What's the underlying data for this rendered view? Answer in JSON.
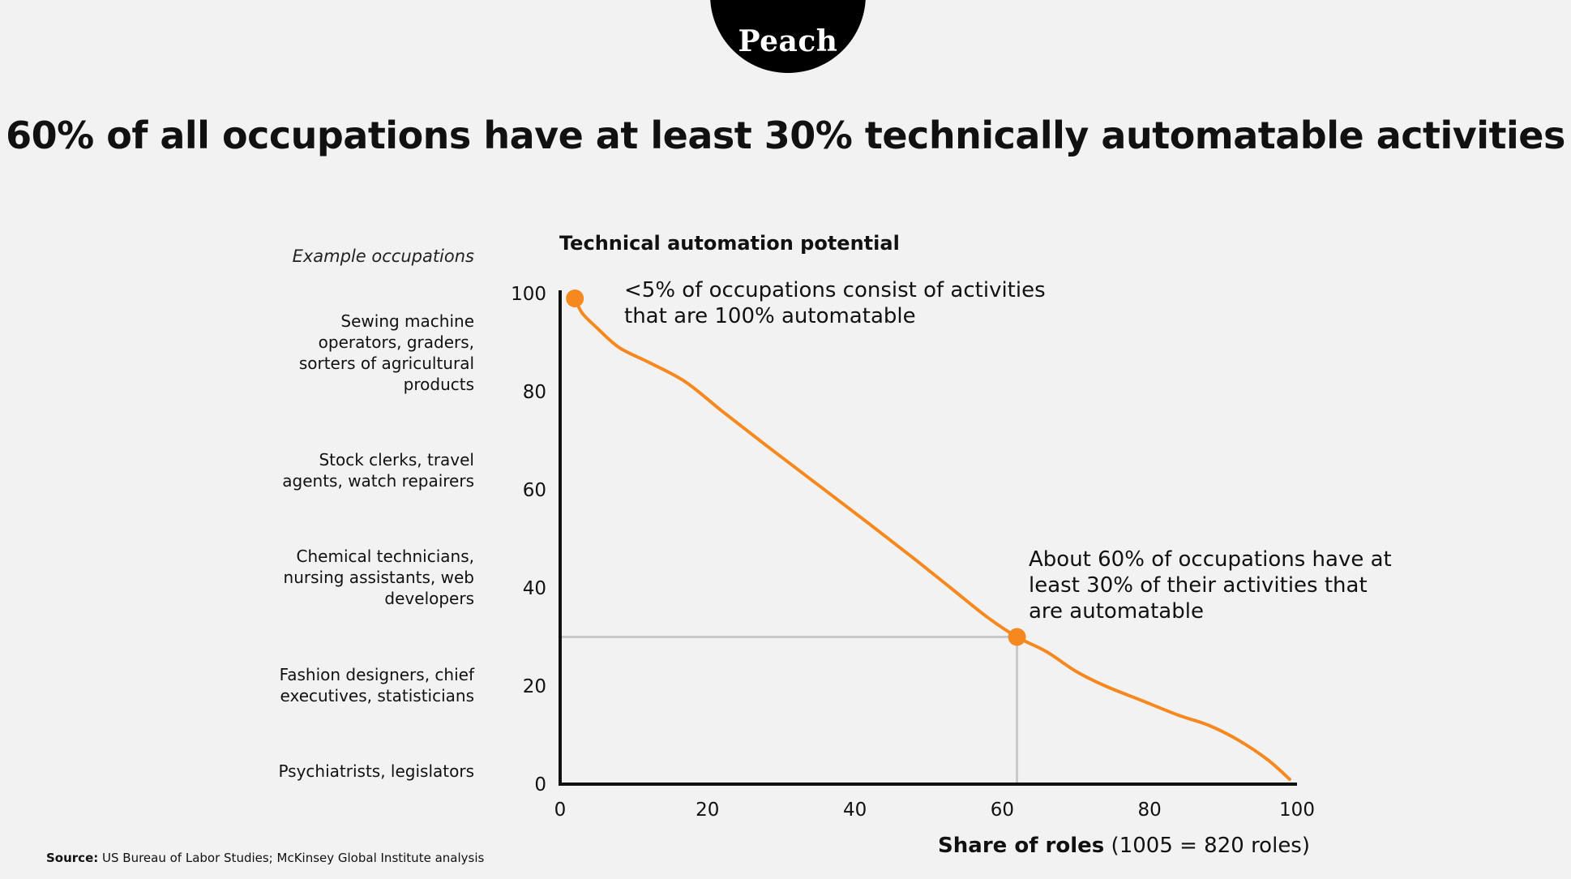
{
  "logo": {
    "text": "Peach"
  },
  "title": "60% of all occupations have at least 30% technically automatable activities",
  "examples": {
    "heading": "Example occupations",
    "items": [
      {
        "lines": [
          "Sewing machine",
          "operators, graders,",
          "sorters of agricultural",
          "products"
        ],
        "level": 100
      },
      {
        "lines": [
          "Stock clerks, travel",
          "agents, watch repairers"
        ],
        "level": 70
      },
      {
        "lines": [
          "Chemical technicians,",
          "nursing assistants, web",
          "developers"
        ],
        "level": 50
      },
      {
        "lines": [
          "Fashion designers, chief",
          "executives, statisticians"
        ],
        "level": 20
      },
      {
        "lines": [
          "Psychiatrists, legislators"
        ],
        "level": 0
      }
    ]
  },
  "annotations": {
    "top": [
      "<5% of occupations consist of activities",
      "that are 100% automatable"
    ],
    "mid": [
      "About 60% of occupations have at",
      "least 30% of their activities that",
      "are automatable"
    ]
  },
  "source": {
    "label": "Source:",
    "text": "US Bureau of Labor Studies; McKinsey Global Institute analysis"
  },
  "colors": {
    "line": "#f5891f",
    "axis": "#111111",
    "guide": "#c8c8c8",
    "background": "#f2f2f2",
    "logo": "#000000"
  },
  "chart_data": {
    "type": "line",
    "title": "Technical automation potential",
    "xlabel_bold": "Share of roles",
    "xlabel_rest": "(1005 = 820 roles)",
    "ylabel": "",
    "xlim": [
      0,
      100
    ],
    "ylim": [
      0,
      100
    ],
    "x_ticks": [
      0,
      20,
      40,
      60,
      80,
      100
    ],
    "y_ticks": [
      0,
      20,
      40,
      60,
      80,
      100
    ],
    "series": [
      {
        "x": [
          2,
          3,
          5,
          8,
          12,
          17,
          22,
          28,
          35,
          42,
          48,
          53,
          58,
          62,
          66,
          70,
          74,
          79,
          84,
          88,
          92,
          96,
          99
        ],
        "y": [
          99,
          96,
          93,
          89,
          86,
          82,
          76,
          69,
          61,
          53,
          46,
          40,
          34,
          30,
          27,
          23,
          20,
          17,
          14,
          12,
          9,
          5,
          1
        ]
      }
    ],
    "highlight_points": [
      {
        "x": 2,
        "y": 99
      },
      {
        "x": 62,
        "y": 30
      }
    ],
    "guide_lines": {
      "x": 62,
      "y": 30
    }
  }
}
